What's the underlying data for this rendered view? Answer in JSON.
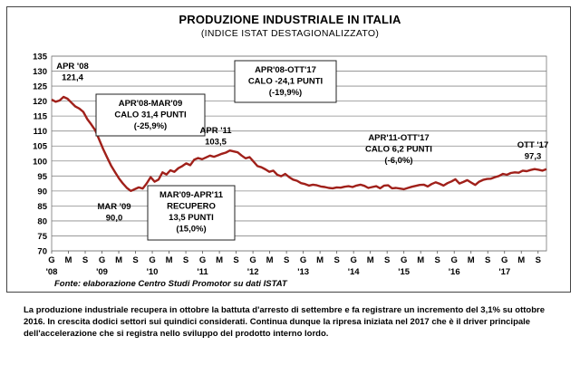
{
  "chart_data": {
    "type": "line",
    "title": "PRODUZIONE INDUSTRIALE IN ITALIA",
    "subtitle": "(INDICE ISTAT DESTAGIONALIZZATO)",
    "ylim": [
      70,
      135
    ],
    "y_ticks": [
      70,
      75,
      80,
      85,
      90,
      95,
      100,
      105,
      110,
      115,
      120,
      125,
      130,
      135
    ],
    "x_month_labels": [
      "G",
      "M",
      "S",
      "G",
      "M",
      "S",
      "G",
      "M",
      "S",
      "G",
      "M",
      "S",
      "G",
      "M",
      "S",
      "G",
      "M",
      "S",
      "G",
      "M",
      "S",
      "G",
      "M",
      "S",
      "G",
      "M",
      "S",
      "G",
      "M",
      "S"
    ],
    "x_year_labels": [
      "'08",
      "'09",
      "'10",
      "'11",
      "'12",
      "'13",
      "'14",
      "'15",
      "'16",
      "'17"
    ],
    "grid": true,
    "line_color": "#a0201a",
    "series": [
      {
        "values": [
          120.5,
          119.8,
          120.2,
          121.4,
          120.8,
          119.5,
          118.2,
          117.5,
          116.4,
          114,
          112.2,
          110.3,
          107.2,
          104,
          101.2,
          98.5,
          96.3,
          94.2,
          92.5,
          91.0,
          90.0,
          90.6,
          91.2,
          90.8,
          92.5,
          94.6,
          93.1,
          93.8,
          96.2,
          95.5,
          96.9,
          96.4,
          97.6,
          98.3,
          99.2,
          98.6,
          100.4,
          101.0,
          100.6,
          101.2,
          101.8,
          101.4,
          101.9,
          102.4,
          102.8,
          103.5,
          103.2,
          102.9,
          101.8,
          100.9,
          101.3,
          99.8,
          98.3,
          97.9,
          97.2,
          96.4,
          96.8,
          95.4,
          94.9,
          95.7,
          94.6,
          93.8,
          93.4,
          92.6,
          92.3,
          91.8,
          92.1,
          91.9,
          91.5,
          91.3,
          91.0,
          90.9,
          91.2,
          91.1,
          91.4,
          91.6,
          91.3,
          91.8,
          92.1,
          91.7,
          91.0,
          91.3,
          91.6,
          90.9,
          91.8,
          91.9,
          90.9,
          91.0,
          90.8,
          90.6,
          91.0,
          91.4,
          91.7,
          92.0,
          92.1,
          91.5,
          92.3,
          92.9,
          92.4,
          91.8,
          92.6,
          93.2,
          93.9,
          92.5,
          93.0,
          93.6,
          92.8,
          92.0,
          93.1,
          93.7,
          94.0,
          94.1,
          94.6,
          95.0,
          95.7,
          95.4,
          96.0,
          96.2,
          96.1,
          96.8,
          96.6,
          97.0,
          97.3,
          97.1,
          96.8,
          97.3
        ]
      }
    ],
    "annotations": [
      {
        "lines": [
          "APR '08",
          "121,4"
        ],
        "boxed": false
      },
      {
        "lines": [
          "APR'08-MAR'09",
          "CALO 31,4 PUNTI",
          "(-25,9%)"
        ],
        "boxed": true
      },
      {
        "lines": [
          "MAR '09",
          "90,0"
        ],
        "boxed": false
      },
      {
        "lines": [
          "APR '11",
          "103,5"
        ],
        "boxed": false
      },
      {
        "lines": [
          "MAR'09-APR'11",
          "RECUPERO",
          "13,5 PUNTI",
          "(15,0%)"
        ],
        "boxed": true
      },
      {
        "lines": [
          "APR'08-OTT'17",
          "CALO -24,1 PUNTI",
          "(-19,9%)"
        ],
        "boxed": true
      },
      {
        "lines": [
          "APR'11-OTT'17",
          "CALO 6,2 PUNTI",
          "(-6,0%)"
        ],
        "boxed": false
      },
      {
        "lines": [
          "OTT '17",
          "97,3"
        ],
        "boxed": false
      }
    ]
  },
  "source": "Fonte: elaborazione Centro Studi Promotor su dati ISTAT",
  "note": "La produzione industriale recupera in ottobre la battuta d'arresto di settembre e fa registrare un incremento  del 3,1% su ottobre 2016. In crescita dodici settori sui quindici considerati. Continua dunque la ripresa iniziata nel 2017 che è il driver principale dell'accelerazione che si registra nello sviluppo del prodotto interno lordo."
}
